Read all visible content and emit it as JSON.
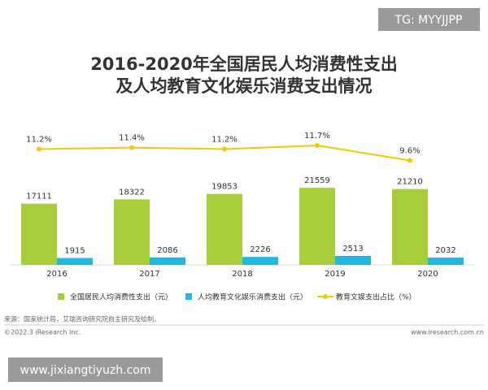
{
  "chart_data": {
    "type": "bar-line",
    "title": "2016-2020年全国居民人均消费性支出",
    "subtitle": "及人均教育文化娱乐消费支出情况",
    "categories": [
      "2016",
      "2017",
      "2018",
      "2019",
      "2020"
    ],
    "series": [
      {
        "name": "全国居民人均消费性支出（元）",
        "color": "#a6ce39",
        "values": [
          17111,
          18322,
          19853,
          21559,
          21210
        ]
      },
      {
        "name": "人均教育文化娱乐消费支出（元）",
        "color": "#1fb8e3",
        "values": [
          1915,
          2086,
          2226,
          2513,
          2032
        ]
      },
      {
        "name": "教育文娱支出占比（%）",
        "color": "#f3c900",
        "axis": "y2",
        "values": [
          11.2,
          11.4,
          11.2,
          11.7,
          9.6
        ],
        "value_labels": [
          "11.2%",
          "11.4%",
          "11.2%",
          "11.7%",
          "9.6%"
        ]
      }
    ],
    "ylim": [
      0,
      40000
    ],
    "y2lim": [
      -5,
      15
    ],
    "source": "来源：国家统计局，艾瑞咨询研究院自主研究及绘制。",
    "copyright": "©2022.3 iResearch Inc.",
    "website": "www.iresearch.com.cn",
    "watermark_top": "TG: MYYJJPP",
    "watermark_bottom": "www.jixiangtiyuzh.com"
  }
}
